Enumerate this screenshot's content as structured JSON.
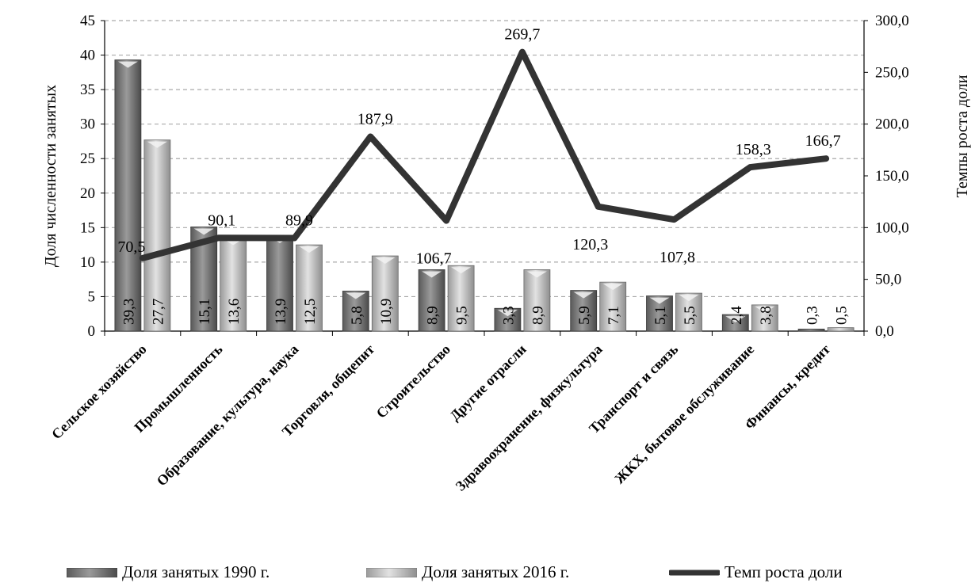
{
  "chart_data": {
    "type": "bar",
    "categories": [
      "Сельское хозяйство",
      "Промышленность",
      "Образование, культура,  наука",
      "Торговля, общепит",
      "Строительство",
      "Другие отрасли",
      "Здравоохранение, физкультура",
      "Транспорт и связь",
      "ЖКХ, бытовое обслуживание",
      "Финансы, кредит"
    ],
    "series": [
      {
        "name": "Доля занятых  1990 г.",
        "type": "bar",
        "axis": "left",
        "values": [
          39.3,
          15.1,
          13.9,
          5.8,
          8.9,
          3.3,
          5.9,
          5.1,
          2.4,
          0.3
        ],
        "labels": [
          "39,3",
          "15,1",
          "13,9",
          "5,8",
          "8,9",
          "3,3",
          "5,9",
          "5,1",
          "2,4",
          "0,3"
        ],
        "color": "#6e6e6e"
      },
      {
        "name": "Доля занятых   2016 г.",
        "type": "bar",
        "axis": "left",
        "values": [
          27.7,
          13.6,
          12.5,
          10.9,
          9.5,
          8.9,
          7.1,
          5.5,
          3.8,
          0.5
        ],
        "labels": [
          "27,7",
          "13,6",
          "12,5",
          "10,9",
          "9,5",
          "8,9",
          "7,1",
          "5,5",
          "3,8",
          "0,5"
        ],
        "color": "#b4b4b4"
      },
      {
        "name": "Темп роста доли",
        "type": "line",
        "axis": "right",
        "values": [
          70.5,
          90.1,
          89.9,
          187.9,
          106.7,
          269.7,
          120.3,
          107.8,
          158.3,
          166.7
        ],
        "labels": [
          "70,5",
          "90,1",
          "89,9",
          "187,9",
          "106,7",
          "269,7",
          "120,3",
          "107,8",
          "158,3",
          "166,7"
        ],
        "color": "#333333"
      }
    ],
    "ylabel": "Доля численности  занятых",
    "y2label": "Темпы роста  доли",
    "ylim": [
      0,
      45
    ],
    "y2lim": [
      0,
      300
    ],
    "yticks": [
      "0",
      "5",
      "10",
      "15",
      "20",
      "25",
      "30",
      "35",
      "40",
      "45"
    ],
    "y2ticks": [
      "0,0",
      "50,0",
      "100,0",
      "150,0",
      "200,0",
      "250,0",
      "300,0"
    ],
    "grid": true,
    "legend_position": "bottom"
  }
}
